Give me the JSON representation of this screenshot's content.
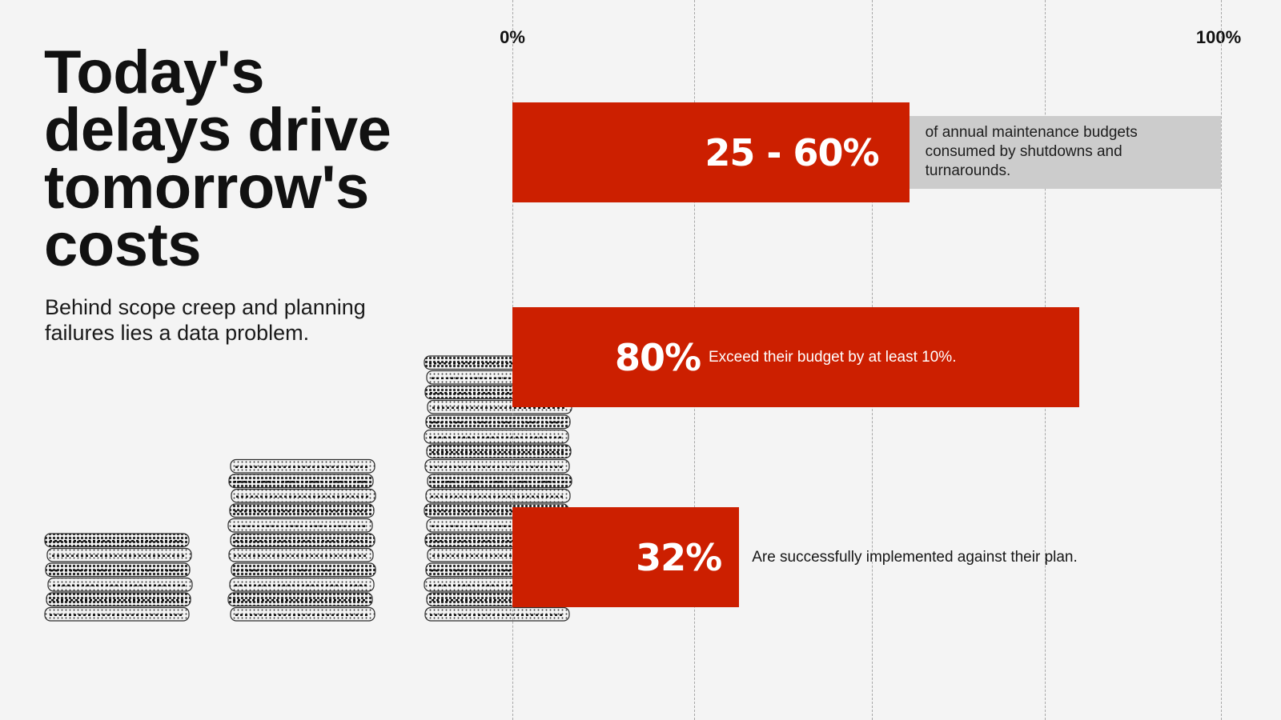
{
  "headline": "Today's delays drive tomorrow's costs",
  "subhead": "Behind scope creep and planning failures lies a data problem.",
  "colors": {
    "bar": "#cc1f00",
    "callout": "#cccccc",
    "background": "#f4f4f4"
  },
  "chart_data": {
    "type": "bar",
    "orientation": "horizontal",
    "xlim": [
      0,
      100
    ],
    "x_ticks": [
      "0%",
      "100%"
    ],
    "grid": true,
    "categories": [
      "25 - 60%",
      "80%",
      "32%"
    ],
    "values": [
      56,
      80,
      32
    ],
    "value_labels": [
      "25 - 60%",
      "80%",
      "32%"
    ],
    "descriptions": [
      "of annual maintenance budgets consumed by shutdowns and turnarounds.",
      "Exceed their budget by at least 10%.",
      "Are successfully implemented against their plan."
    ]
  },
  "illustration": {
    "icon": "coin-stacks-icon",
    "stack_heights": [
      6,
      11,
      18
    ]
  }
}
